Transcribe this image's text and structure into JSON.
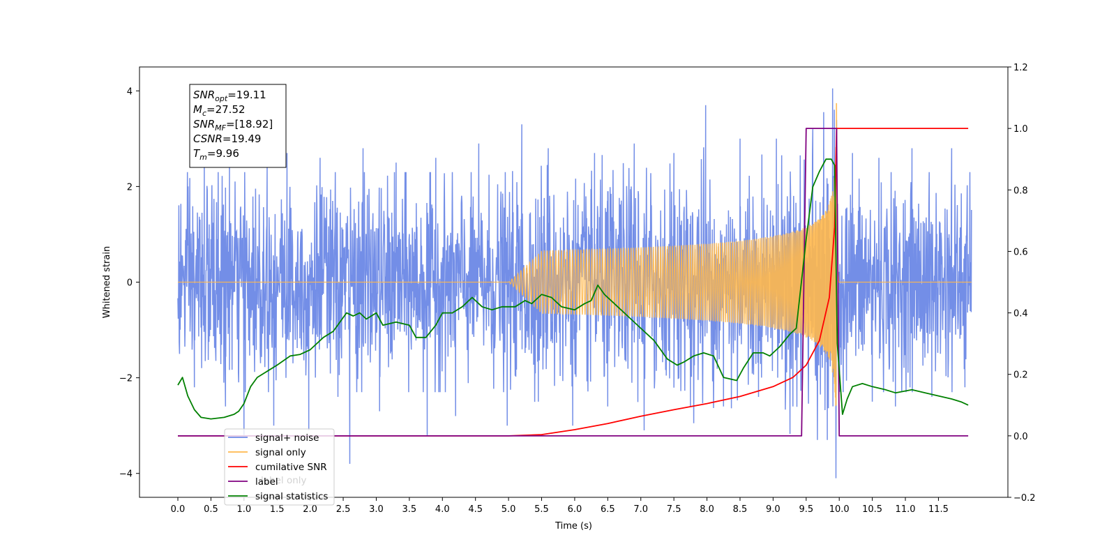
{
  "chart_data": {
    "type": "line",
    "xlabel": "Time (s)",
    "ylabel": "Whitened strain",
    "x_ticks": [
      "0.0",
      "0.5",
      "1.0",
      "1.5",
      "2.0",
      "2.5",
      "3.0",
      "3.5",
      "4.0",
      "4.5",
      "5.0",
      "5.5",
      "6.0",
      "6.5",
      "7.0",
      "7.5",
      "8.0",
      "8.5",
      "9.0",
      "9.5",
      "10.0",
      "10.5",
      "11.0",
      "11.5"
    ],
    "xlim": [
      -0.58,
      12.55
    ],
    "ylim_left": [
      -4.5,
      4.5
    ],
    "ylim_right": [
      -0.2,
      1.2
    ],
    "y_ticks_left": [
      "−4",
      "−2",
      "0",
      "2",
      "4"
    ],
    "y_ticks_right": [
      "−0.2",
      "0.0",
      "0.2",
      "0.4",
      "0.6",
      "0.8",
      "1.0",
      "1.2"
    ],
    "info_box": {
      "lines": [
        {
          "sym": "SNR",
          "sub": "opt",
          "val": "=19.11"
        },
        {
          "sym": "M",
          "sub": "c",
          "val": "=27.52"
        },
        {
          "sym": "SNR",
          "sub": "MF",
          "val": "=[18.92]"
        },
        {
          "sym": "CSNR",
          "sub": "",
          "val": "=19.49"
        },
        {
          "sym": "T",
          "sub": "m",
          "val": "=9.96"
        }
      ]
    },
    "legend": {
      "position": "lower-left",
      "entries": [
        {
          "label": "signal+ noise",
          "color": "#6c88e6"
        },
        {
          "label": "signal only",
          "color": "#ffb84d"
        },
        {
          "label": "cumilative SNR",
          "color": "#ff0000"
        },
        {
          "label": "label",
          "color": "#800080"
        },
        {
          "label": "signal statistics",
          "color": "#008000"
        }
      ],
      "obscured_text": [
        "label only"
      ]
    },
    "series": [
      {
        "name": "signal+ noise",
        "axis": "left",
        "color": "#6c88e6",
        "x_range": [
          0.0,
          12.0
        ],
        "typical_band": [
          -1.6,
          1.6
        ],
        "spikes": [
          [
            0.25,
            -2.2
          ],
          [
            0.4,
            2.6
          ],
          [
            0.72,
            -2.6
          ],
          [
            0.78,
            2.5
          ],
          [
            1.0,
            -3.2
          ],
          [
            1.35,
            2.4
          ],
          [
            1.45,
            -3.0
          ],
          [
            1.65,
            2.7
          ],
          [
            1.98,
            -3.1
          ],
          [
            2.15,
            2.6
          ],
          [
            2.42,
            -2.4
          ],
          [
            2.6,
            -3.8
          ],
          [
            2.8,
            2.8
          ],
          [
            3.05,
            -2.7
          ],
          [
            3.3,
            2.5
          ],
          [
            3.77,
            -3.2
          ],
          [
            3.9,
            2.6
          ],
          [
            4.2,
            -2.8
          ],
          [
            4.55,
            2.9
          ],
          [
            4.98,
            -3.0
          ],
          [
            5.2,
            3.3
          ],
          [
            5.45,
            -2.5
          ],
          [
            5.6,
            2.8
          ],
          [
            5.97,
            -3.0
          ],
          [
            6.3,
            2.7
          ],
          [
            6.5,
            -2.6
          ],
          [
            6.9,
            2.9
          ],
          [
            7.05,
            -3.1
          ],
          [
            7.5,
            2.7
          ],
          [
            7.75,
            -2.6
          ],
          [
            7.98,
            3.7
          ],
          [
            8.25,
            -2.6
          ],
          [
            8.5,
            3.0
          ],
          [
            8.78,
            -2.4
          ],
          [
            9.05,
            3.0
          ],
          [
            9.3,
            -2.6
          ],
          [
            9.6,
            3.2
          ],
          [
            9.82,
            -3.3
          ],
          [
            9.9,
            4.05
          ],
          [
            9.95,
            -4.1
          ],
          [
            10.2,
            2.7
          ],
          [
            10.5,
            -2.5
          ],
          [
            10.6,
            2.6
          ],
          [
            10.85,
            -2.6
          ],
          [
            11.1,
            2.8
          ],
          [
            11.4,
            -2.4
          ],
          [
            11.7,
            2.8
          ],
          [
            11.9,
            -2.2
          ]
        ]
      },
      {
        "name": "signal only",
        "axis": "left",
        "color": "#ffb84d",
        "x_range": [
          0.0,
          12.0
        ],
        "merger_time": 9.96,
        "peak_amplitude": 3.8
      },
      {
        "name": "cumilative SNR",
        "axis": "right",
        "color": "#ff0000",
        "x": [
          0.0,
          5.0,
          5.5,
          6.0,
          6.5,
          7.0,
          7.5,
          8.0,
          8.5,
          9.0,
          9.3,
          9.5,
          9.7,
          9.85,
          9.93,
          9.96,
          11.95
        ],
        "y": [
          0.0,
          0.0,
          0.004,
          0.02,
          0.04,
          0.064,
          0.085,
          0.105,
          0.128,
          0.16,
          0.19,
          0.23,
          0.31,
          0.45,
          0.68,
          1.0,
          1.0
        ]
      },
      {
        "name": "label",
        "axis": "right",
        "color": "#800080",
        "x": [
          0.0,
          9.43,
          9.5,
          9.96,
          10.0,
          11.95
        ],
        "y": [
          0.0,
          0.0,
          1.0,
          1.0,
          0.0,
          0.0
        ]
      },
      {
        "name": "signal statistics",
        "axis": "right",
        "color": "#008000",
        "x": [
          0.0,
          0.07,
          0.15,
          0.25,
          0.35,
          0.5,
          0.7,
          0.85,
          0.92,
          1.0,
          1.1,
          1.2,
          1.35,
          1.5,
          1.7,
          1.85,
          2.0,
          2.2,
          2.35,
          2.45,
          2.55,
          2.65,
          2.75,
          2.85,
          3.0,
          3.1,
          3.3,
          3.5,
          3.6,
          3.75,
          3.9,
          4.0,
          4.15,
          4.3,
          4.45,
          4.6,
          4.75,
          4.9,
          5.1,
          5.25,
          5.35,
          5.5,
          5.65,
          5.8,
          6.0,
          6.15,
          6.25,
          6.35,
          6.45,
          6.6,
          6.8,
          7.0,
          7.2,
          7.4,
          7.55,
          7.65,
          7.8,
          7.95,
          8.1,
          8.25,
          8.45,
          8.55,
          8.7,
          8.85,
          8.95,
          9.1,
          9.25,
          9.35,
          9.5,
          9.6,
          9.7,
          9.8,
          9.88,
          9.93,
          9.97,
          10.05,
          10.12,
          10.2,
          10.35,
          10.5,
          10.7,
          10.85,
          11.1,
          11.3,
          11.5,
          11.7,
          11.85,
          11.95
        ],
        "y": [
          0.165,
          0.19,
          0.13,
          0.085,
          0.06,
          0.055,
          0.06,
          0.07,
          0.08,
          0.105,
          0.16,
          0.19,
          0.21,
          0.23,
          0.26,
          0.265,
          0.28,
          0.32,
          0.34,
          0.37,
          0.4,
          0.39,
          0.4,
          0.38,
          0.4,
          0.36,
          0.37,
          0.36,
          0.32,
          0.32,
          0.36,
          0.4,
          0.4,
          0.42,
          0.45,
          0.42,
          0.41,
          0.42,
          0.42,
          0.44,
          0.43,
          0.46,
          0.45,
          0.42,
          0.41,
          0.43,
          0.44,
          0.49,
          0.46,
          0.43,
          0.39,
          0.35,
          0.31,
          0.25,
          0.23,
          0.24,
          0.26,
          0.27,
          0.26,
          0.19,
          0.18,
          0.22,
          0.27,
          0.27,
          0.26,
          0.29,
          0.33,
          0.35,
          0.64,
          0.81,
          0.86,
          0.9,
          0.9,
          0.88,
          0.3,
          0.07,
          0.12,
          0.16,
          0.17,
          0.16,
          0.15,
          0.14,
          0.15,
          0.14,
          0.13,
          0.12,
          0.11,
          0.1
        ]
      }
    ]
  }
}
